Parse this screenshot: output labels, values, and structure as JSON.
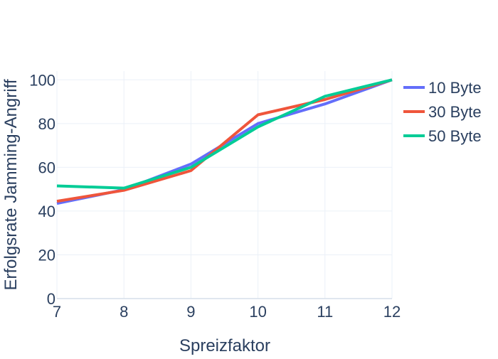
{
  "chart_data": {
    "type": "line",
    "xlabel": "Spreizfaktor",
    "ylabel": "Erfolgsrate Jamming-Angriff",
    "xlim": [
      7,
      12
    ],
    "ylim": [
      0,
      104
    ],
    "x_ticks": [
      7,
      8,
      9,
      10,
      11,
      12
    ],
    "y_ticks": [
      0,
      20,
      40,
      60,
      80,
      100
    ],
    "grid": true,
    "legend_position": "right",
    "x": [
      7,
      8,
      9,
      10,
      11,
      12
    ],
    "series": [
      {
        "name": "10 Byte",
        "color": "#636efa",
        "values": [
          43.5,
          49.8,
          61.5,
          80.0,
          89.0,
          100.0
        ]
      },
      {
        "name": "30 Byte",
        "color": "#ef553b",
        "values": [
          44.5,
          49.5,
          58.5,
          84.0,
          91.0,
          100.0
        ]
      },
      {
        "name": "50 Byte",
        "color": "#00cc96",
        "values": [
          51.5,
          50.5,
          60.0,
          78.5,
          92.5,
          100.0
        ]
      }
    ]
  }
}
